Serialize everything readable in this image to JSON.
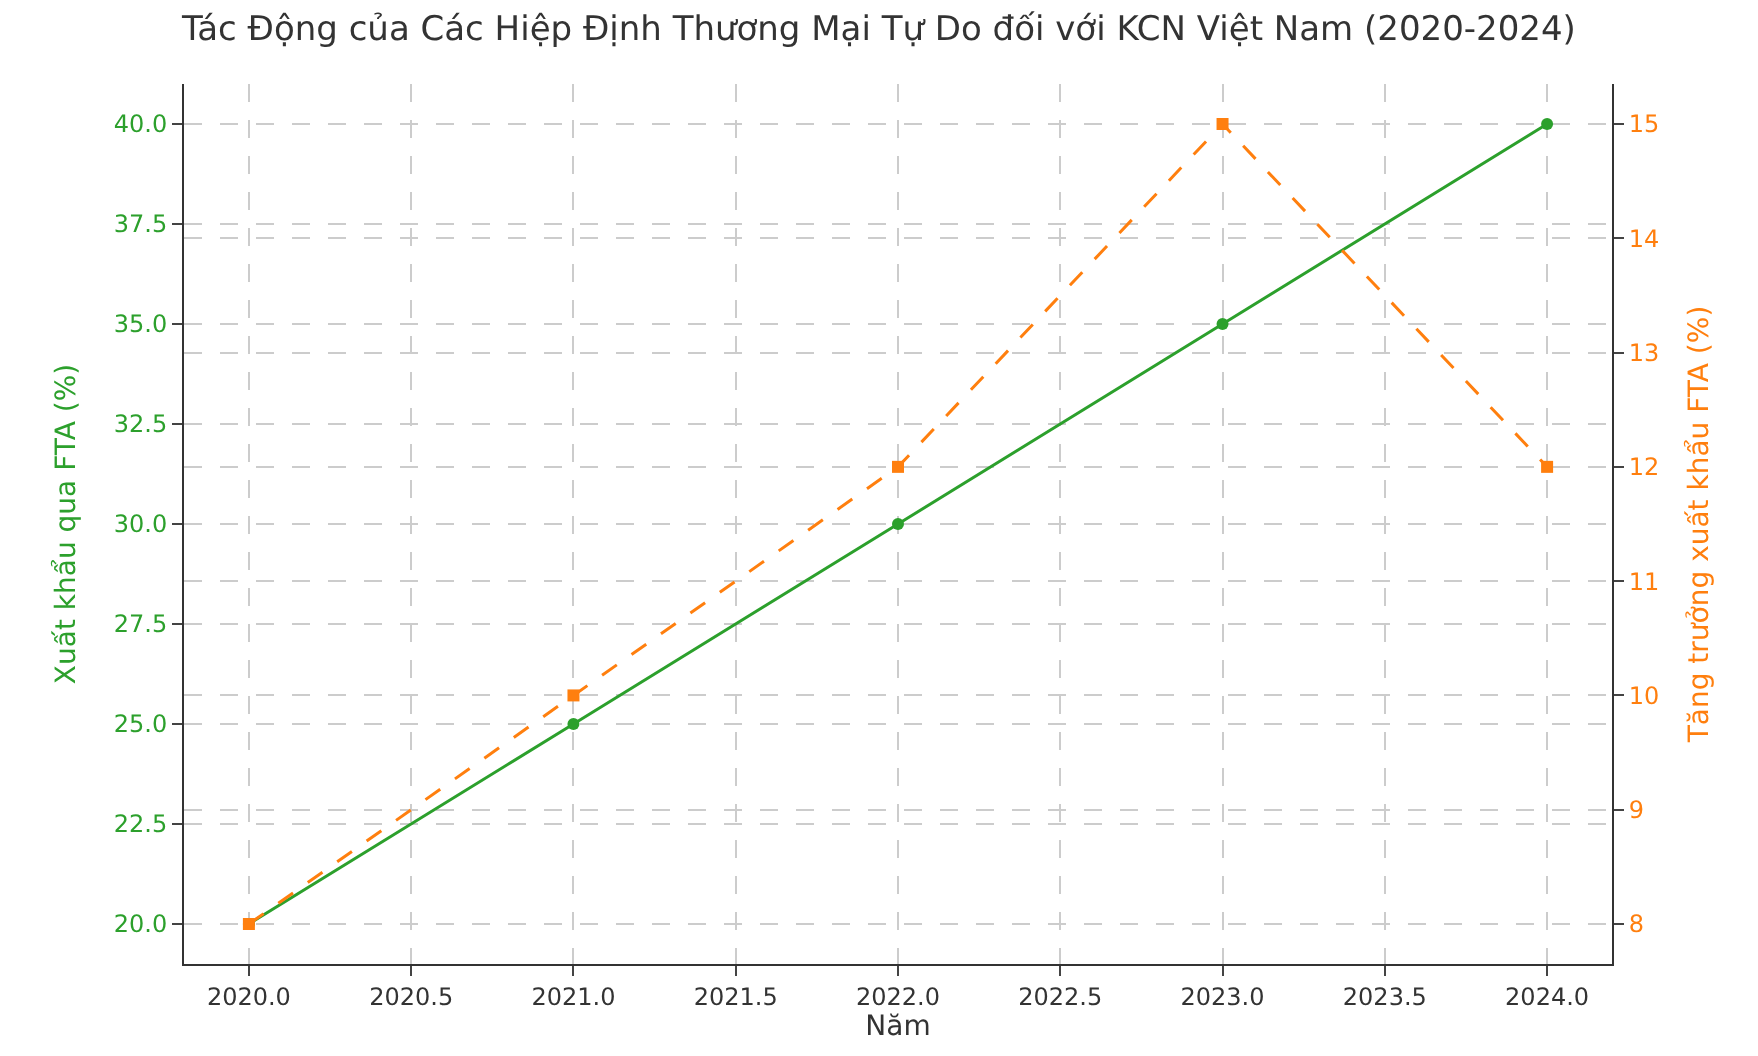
{
  "chart_data": {
    "type": "line",
    "title": "Tác Động của Các Hiệp Định Thương Mại Tự Do đối với KCN Việt Nam (2020-2024)",
    "xlabel": "Năm",
    "ylabel": "Xuất khẩu qua FTA (%)",
    "y2label": "Tăng trưởng xuất khẩu FTA (%)",
    "x": [
      2020,
      2021,
      2022,
      2023,
      2024
    ],
    "series": [
      {
        "color": "#2ca02c",
        "values": [
          20,
          25,
          30,
          35,
          40
        ],
        "marker": "circle",
        "line_style": "solid"
      },
      {
        "color": "#ff7f0e",
        "values": [
          8,
          10,
          12,
          15,
          12
        ],
        "marker": "square",
        "line_style": "dashed",
        "axis": "y2"
      }
    ],
    "xlim": [
      2019.8,
      2024.2
    ],
    "xticks": [
      {
        "value": 2020,
        "label": "2020.0"
      },
      {
        "value": 2020.5,
        "label": "2020.5"
      },
      {
        "value": 2021,
        "label": "2021.0"
      },
      {
        "value": 2021.5,
        "label": "2021.5"
      },
      {
        "value": 2022,
        "label": "2022.0"
      },
      {
        "value": 2022.5,
        "label": "2022.5"
      },
      {
        "value": 2023,
        "label": "2023.0"
      },
      {
        "value": 2023.5,
        "label": "2023.5"
      },
      {
        "value": 2024,
        "label": "2024.0"
      }
    ],
    "ylim": [
      19,
      41
    ],
    "yticks": [
      {
        "value": 20,
        "label": "20.0"
      },
      {
        "value": 22.5,
        "label": "22.5"
      },
      {
        "value": 25,
        "label": "25.0"
      },
      {
        "value": 27.5,
        "label": "27.5"
      },
      {
        "value": 30,
        "label": "30.0"
      },
      {
        "value": 32.5,
        "label": "32.5"
      },
      {
        "value": 35,
        "label": "35.0"
      },
      {
        "value": 37.5,
        "label": "37.5"
      },
      {
        "value": 40,
        "label": "40.0"
      }
    ],
    "y2lim": [
      7.65,
      15.35
    ],
    "y2ticks": [
      8,
      9,
      10,
      11,
      12,
      13,
      14,
      15
    ],
    "grid": true
  }
}
